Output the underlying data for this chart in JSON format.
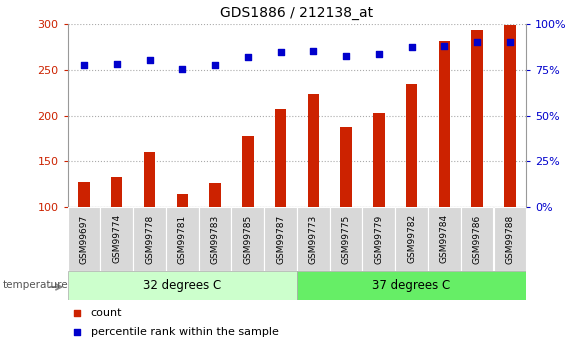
{
  "title": "GDS1886 / 212138_at",
  "categories": [
    "GSM99697",
    "GSM99774",
    "GSM99778",
    "GSM99781",
    "GSM99783",
    "GSM99785",
    "GSM99787",
    "GSM99773",
    "GSM99775",
    "GSM99779",
    "GSM99782",
    "GSM99784",
    "GSM99786",
    "GSM99788"
  ],
  "bar_values": [
    127,
    133,
    160,
    114,
    126,
    178,
    207,
    224,
    188,
    203,
    234,
    282,
    294,
    299
  ],
  "dot_values": [
    255,
    256,
    261,
    251,
    255,
    264,
    269,
    271,
    265,
    267,
    275,
    276,
    280,
    280
  ],
  "bar_color": "#cc2200",
  "dot_color": "#0000cc",
  "ylim_left": [
    100,
    300
  ],
  "ylim_right": [
    0,
    100
  ],
  "yticks_left": [
    100,
    150,
    200,
    250,
    300
  ],
  "yticks_right": [
    0,
    25,
    50,
    75,
    100
  ],
  "group1_label": "32 degrees C",
  "group2_label": "37 degrees C",
  "group1_count": 7,
  "group2_count": 7,
  "group1_color": "#ccffcc",
  "group2_color": "#66ee66",
  "temp_label": "temperature",
  "legend_bar": "count",
  "legend_dot": "percentile rank within the sample",
  "tick_box_color": "#d8d8d8",
  "tick_label_color_left": "#cc2200",
  "tick_label_color_right": "#0000cc",
  "grid_color": "#aaaaaa"
}
